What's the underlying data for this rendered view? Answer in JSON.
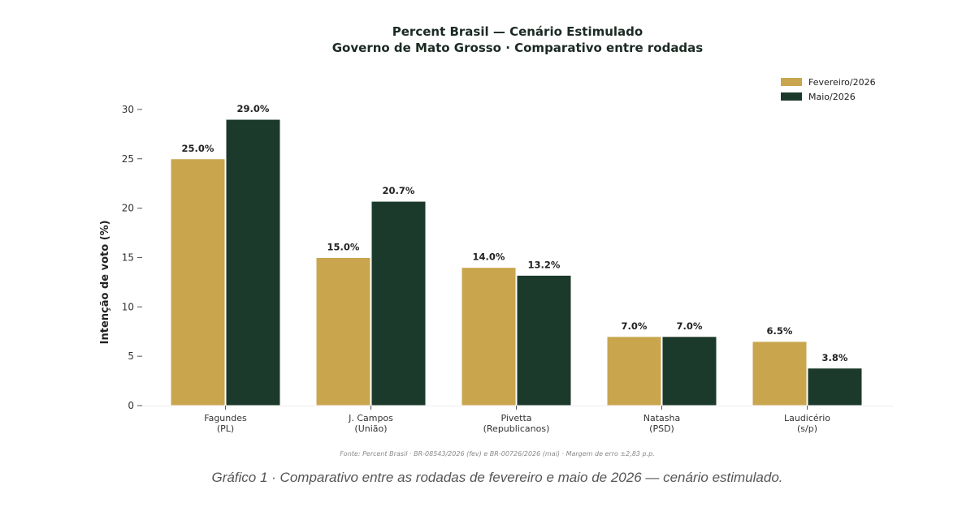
{
  "chart_data": {
    "type": "bar",
    "title": [
      "Percent Brasil — Cenário Estimulado",
      "Governo de Mato Grosso · Comparativo entre rodadas"
    ],
    "xlabel": "",
    "ylabel": "Intenção de voto (%)",
    "ylim": [
      0,
      34
    ],
    "yticks": [
      0,
      5,
      10,
      15,
      20,
      25,
      30
    ],
    "categories": [
      [
        "Fagundes",
        "(PL)"
      ],
      [
        "J. Campos",
        "(União)"
      ],
      [
        "Pivetta",
        "(Republicanos)"
      ],
      [
        "Natasha",
        "(PSD)"
      ],
      [
        "Laudicério",
        "(s/p)"
      ]
    ],
    "series": [
      {
        "name": "Fevereiro/2026",
        "color": "#c9a64e",
        "values": [
          25.0,
          15.0,
          14.0,
          7.0,
          6.5
        ],
        "labels": [
          "25.0%",
          "15.0%",
          "14.0%",
          "7.0%",
          "6.5%"
        ]
      },
      {
        "name": "Maio/2026",
        "color": "#1c3a2c",
        "values": [
          29.0,
          20.7,
          13.2,
          7.0,
          3.8
        ],
        "labels": [
          "29.0%",
          "20.7%",
          "13.2%",
          "7.0%",
          "3.8%"
        ]
      }
    ],
    "legend": "top-right",
    "grid": false,
    "source": "Fonte: Percent Brasil · BR-08543/2026 (fev) e BR-00726/2026 (mai) · Margem de erro ±2,83 p.p."
  },
  "caption": "Gráfico 1 · Comparativo entre as rodadas de fevereiro e maio de 2026 — cenário estimulado."
}
